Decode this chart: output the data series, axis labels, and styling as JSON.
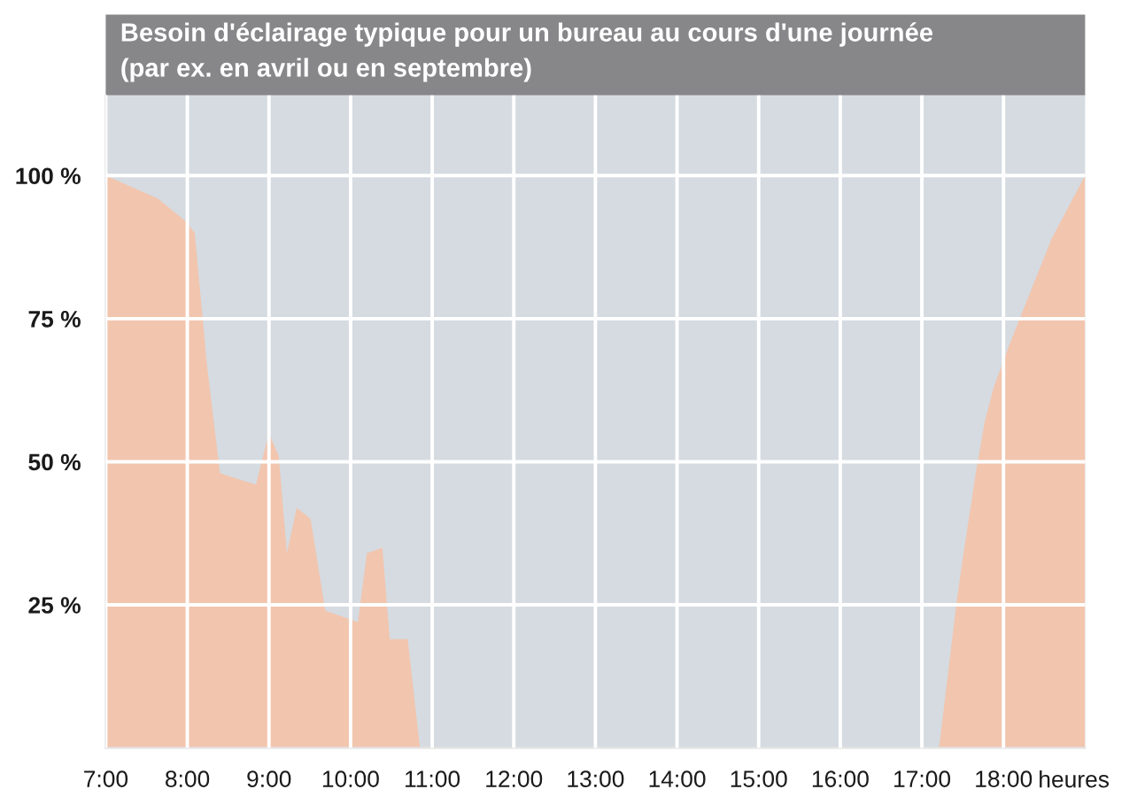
{
  "chart_data": {
    "type": "area",
    "title": "Besoin d'éclairage typique pour un bureau au cours d'une journée",
    "subtitle": "(par ex. en avril ou en septembre)",
    "xlabel": "heures",
    "x": [
      7.0,
      7.64,
      7.98,
      8.09,
      8.24,
      8.4,
      8.84,
      9.0,
      9.12,
      9.22,
      9.34,
      9.51,
      9.69,
      10.09,
      10.2,
      10.39,
      10.48,
      10.7,
      10.85,
      17.21,
      17.43,
      17.5,
      17.66,
      17.77,
      17.88,
      18.06,
      18.31,
      18.59,
      19.0
    ],
    "values": [
      100,
      96,
      92,
      90,
      67,
      48,
      46,
      55,
      51,
      34,
      42,
      40,
      24,
      22,
      34,
      35,
      19,
      19,
      0,
      0,
      26,
      33,
      48,
      57,
      63,
      70,
      79,
      89,
      100
    ],
    "color": "#f2c5ae",
    "xlim": [
      7,
      19
    ],
    "xticks": [
      {
        "value": 7,
        "label": "7:00"
      },
      {
        "value": 8,
        "label": "8:00"
      },
      {
        "value": 9,
        "label": "9:00"
      },
      {
        "value": 10,
        "label": "10:00"
      },
      {
        "value": 11,
        "label": "11:00"
      },
      {
        "value": 12,
        "label": "12:00"
      },
      {
        "value": 13,
        "label": "13:00"
      },
      {
        "value": 14,
        "label": "14:00"
      },
      {
        "value": 15,
        "label": "15:00"
      },
      {
        "value": 16,
        "label": "16:00"
      },
      {
        "value": 17,
        "label": "17:00"
      },
      {
        "value": 18,
        "label": "18:00"
      }
    ],
    "ylim": [
      0,
      114
    ],
    "yticks": [
      {
        "value": 25,
        "label": "25 %"
      },
      {
        "value": 50,
        "label": "50 %"
      },
      {
        "value": 75,
        "label": "75 %"
      },
      {
        "value": 100,
        "label": "100 %"
      }
    ],
    "grid": true
  }
}
